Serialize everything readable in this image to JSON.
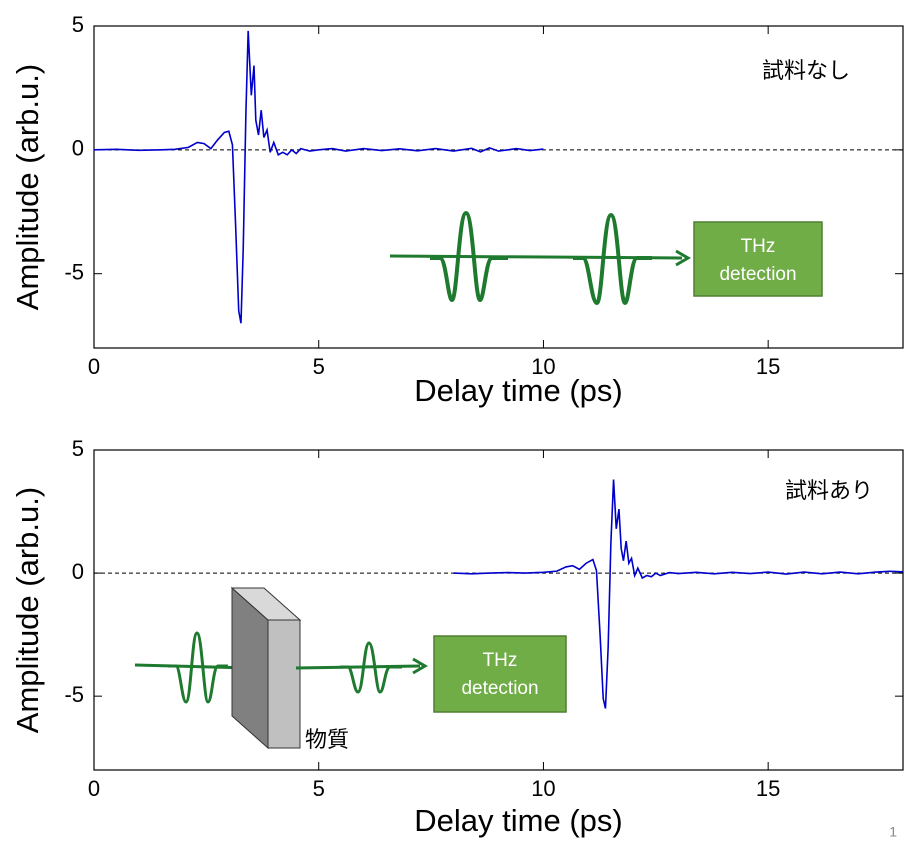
{
  "chart_data": [
    {
      "type": "line",
      "color": "#0000cc",
      "xlim": [
        0,
        18
      ],
      "ylim": [
        -8,
        5
      ],
      "xticks": [
        0,
        5,
        10,
        15
      ],
      "yticks": [
        -5,
        0,
        5
      ],
      "xlabel": "Delay time (ps)",
      "ylabel": "Amplitude (arb.u.)",
      "annotation": "試料なし",
      "reference_line": 0,
      "detector_text": [
        "THz",
        "detection"
      ],
      "x": [
        0,
        0.5,
        1,
        1.5,
        1.8,
        2.1,
        2.3,
        2.45,
        2.6,
        2.75,
        2.9,
        3.0,
        3.08,
        3.15,
        3.22,
        3.27,
        3.32,
        3.38,
        3.43,
        3.5,
        3.56,
        3.6,
        3.66,
        3.72,
        3.78,
        3.85,
        3.92,
        4.0,
        4.1,
        4.2,
        4.3,
        4.4,
        4.5,
        4.6,
        4.8,
        5.0,
        5.3,
        5.6,
        6.0,
        6.4,
        6.8,
        7.2,
        7.6,
        8.0,
        8.4,
        8.6,
        8.8,
        9.0,
        9.4,
        9.7,
        10.0
      ],
      "values": [
        0,
        0.02,
        -0.02,
        0,
        0.02,
        0.1,
        0.3,
        0.25,
        0.05,
        0.4,
        0.7,
        0.75,
        0.2,
        -3,
        -6.5,
        -7,
        -4,
        1.5,
        4.8,
        2.2,
        3.4,
        1.2,
        0.6,
        1.6,
        0.5,
        0.8,
        -0.1,
        0.3,
        -0.2,
        -0.1,
        -0.2,
        0,
        -0.15,
        0.05,
        -0.05,
        0,
        0.05,
        -0.05,
        0.05,
        -0.03,
        0.04,
        -0.04,
        0.05,
        -0.05,
        0.06,
        -0.08,
        0.08,
        -0.05,
        0.05,
        -0.03,
        0.03
      ]
    },
    {
      "type": "line",
      "color": "#0000cc",
      "xlim": [
        0,
        18
      ],
      "ylim": [
        -8,
        5
      ],
      "xticks": [
        0,
        5,
        10,
        15
      ],
      "yticks": [
        -5,
        0,
        5
      ],
      "xlabel": "Delay time (ps)",
      "ylabel": "Amplitude (arb.u.)",
      "annotation": "試料あり",
      "reference_line": 0,
      "detector_text": [
        "THz",
        "detection"
      ],
      "sample_text": "物質",
      "x": [
        8.0,
        8.4,
        8.8,
        9.2,
        9.6,
        10.0,
        10.3,
        10.5,
        10.65,
        10.8,
        10.95,
        11.1,
        11.18,
        11.26,
        11.33,
        11.38,
        11.44,
        11.5,
        11.56,
        11.62,
        11.68,
        11.73,
        11.78,
        11.84,
        11.9,
        11.96,
        12.03,
        12.1,
        12.2,
        12.3,
        12.4,
        12.5,
        12.6,
        12.8,
        13.0,
        13.4,
        13.8,
        14.2,
        14.6,
        15.0,
        15.4,
        15.8,
        16.2,
        16.6,
        17.0,
        17.4,
        17.7,
        18.0
      ],
      "values": [
        0,
        -0.03,
        0,
        0.02,
        0,
        0.03,
        0.08,
        0.25,
        0.3,
        0.15,
        0.4,
        0.55,
        0.1,
        -2.5,
        -5.1,
        -5.5,
        -3,
        1.2,
        3.8,
        1.8,
        2.6,
        1,
        0.5,
        1.3,
        0.4,
        0.6,
        -0.1,
        0.2,
        -0.2,
        -0.1,
        -0.15,
        0,
        -0.1,
        0.02,
        -0.02,
        0.03,
        -0.03,
        0.03,
        -0.02,
        0.04,
        -0.04,
        0.04,
        -0.03,
        0.04,
        -0.03,
        0.04,
        0.07,
        0.05
      ]
    }
  ],
  "page_number": "1"
}
